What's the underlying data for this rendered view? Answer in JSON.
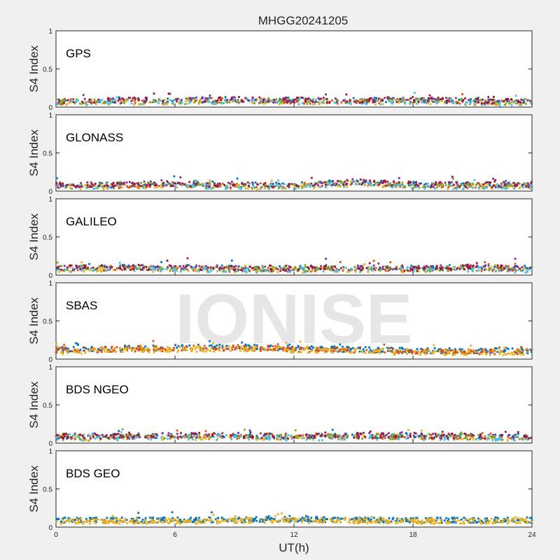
{
  "figure": {
    "title": "MHGG20241205",
    "xlabel": "UT(h)",
    "watermark": "IONISE",
    "background": "#f0f0f0",
    "axes_background": "#ffffff"
  },
  "chart_data": {
    "type": "scatter",
    "title": "MHGG20241205",
    "xlabel": "UT(h)",
    "ylabel": "S4 Index",
    "xlim": [
      0,
      24
    ],
    "xticks": [
      0,
      6,
      12,
      18,
      24
    ],
    "ylim": [
      0,
      1
    ],
    "yticks": [
      0,
      0.5,
      1
    ],
    "ytick_labels": [
      "0",
      "0.5",
      "1"
    ],
    "grid": false,
    "panels": [
      {
        "label": "GPS",
        "series_colors": [
          "#0072BD",
          "#D95319",
          "#EDB120",
          "#7E2F8E",
          "#77AC30",
          "#4DBEEE",
          "#A2142F"
        ],
        "profile": [
          {
            "x": 0,
            "y": 0.08
          },
          {
            "x": 3,
            "y": 0.09
          },
          {
            "x": 6,
            "y": 0.09
          },
          {
            "x": 9,
            "y": 0.1
          },
          {
            "x": 12,
            "y": 0.09
          },
          {
            "x": 15,
            "y": 0.09
          },
          {
            "x": 18,
            "y": 0.1
          },
          {
            "x": 21,
            "y": 0.08
          },
          {
            "x": 24,
            "y": 0.07
          }
        ]
      },
      {
        "label": "GLONASS",
        "series_colors": [
          "#0072BD",
          "#D95319",
          "#EDB120",
          "#7E2F8E",
          "#77AC30",
          "#4DBEEE",
          "#A2142F"
        ],
        "profile": [
          {
            "x": 0,
            "y": 0.08
          },
          {
            "x": 3,
            "y": 0.08
          },
          {
            "x": 6,
            "y": 0.1
          },
          {
            "x": 9,
            "y": 0.08
          },
          {
            "x": 12,
            "y": 0.08
          },
          {
            "x": 15,
            "y": 0.12
          },
          {
            "x": 18,
            "y": 0.09
          },
          {
            "x": 21,
            "y": 0.08
          },
          {
            "x": 24,
            "y": 0.09
          }
        ]
      },
      {
        "label": "GALILEO",
        "series_colors": [
          "#0072BD",
          "#D95319",
          "#EDB120",
          "#7E2F8E",
          "#77AC30",
          "#4DBEEE",
          "#A2142F"
        ],
        "profile": [
          {
            "x": 0,
            "y": 0.1
          },
          {
            "x": 3,
            "y": 0.1
          },
          {
            "x": 6,
            "y": 0.1
          },
          {
            "x": 9,
            "y": 0.09
          },
          {
            "x": 12,
            "y": 0.09
          },
          {
            "x": 15,
            "y": 0.1
          },
          {
            "x": 18,
            "y": 0.09
          },
          {
            "x": 21,
            "y": 0.1
          },
          {
            "x": 24,
            "y": 0.09
          }
        ]
      },
      {
        "label": "SBAS",
        "series_colors": [
          "#0072BD",
          "#D95319",
          "#EDB120"
        ],
        "profile": [
          {
            "x": 0,
            "y": 0.12
          },
          {
            "x": 3,
            "y": 0.14
          },
          {
            "x": 6,
            "y": 0.15
          },
          {
            "x": 9,
            "y": 0.16
          },
          {
            "x": 12,
            "y": 0.14
          },
          {
            "x": 15,
            "y": 0.13
          },
          {
            "x": 18,
            "y": 0.11
          },
          {
            "x": 21,
            "y": 0.11
          },
          {
            "x": 24,
            "y": 0.11
          }
        ]
      },
      {
        "label": "BDS NGEO",
        "series_colors": [
          "#0072BD",
          "#D95319",
          "#EDB120",
          "#7E2F8E",
          "#77AC30",
          "#4DBEEE",
          "#A2142F"
        ],
        "profile": [
          {
            "x": 0,
            "y": 0.09
          },
          {
            "x": 3,
            "y": 0.09
          },
          {
            "x": 6,
            "y": 0.1
          },
          {
            "x": 9,
            "y": 0.1
          },
          {
            "x": 12,
            "y": 0.09
          },
          {
            "x": 15,
            "y": 0.1
          },
          {
            "x": 18,
            "y": 0.1
          },
          {
            "x": 21,
            "y": 0.09
          },
          {
            "x": 24,
            "y": 0.09
          }
        ]
      },
      {
        "label": "BDS GEO",
        "series_colors": [
          "#0072BD",
          "#EDB120"
        ],
        "profile": [
          {
            "x": 0,
            "y": 0.09
          },
          {
            "x": 6,
            "y": 0.09
          },
          {
            "x": 12,
            "y": 0.1
          },
          {
            "x": 18,
            "y": 0.09
          },
          {
            "x": 24,
            "y": 0.09
          }
        ]
      }
    ]
  }
}
